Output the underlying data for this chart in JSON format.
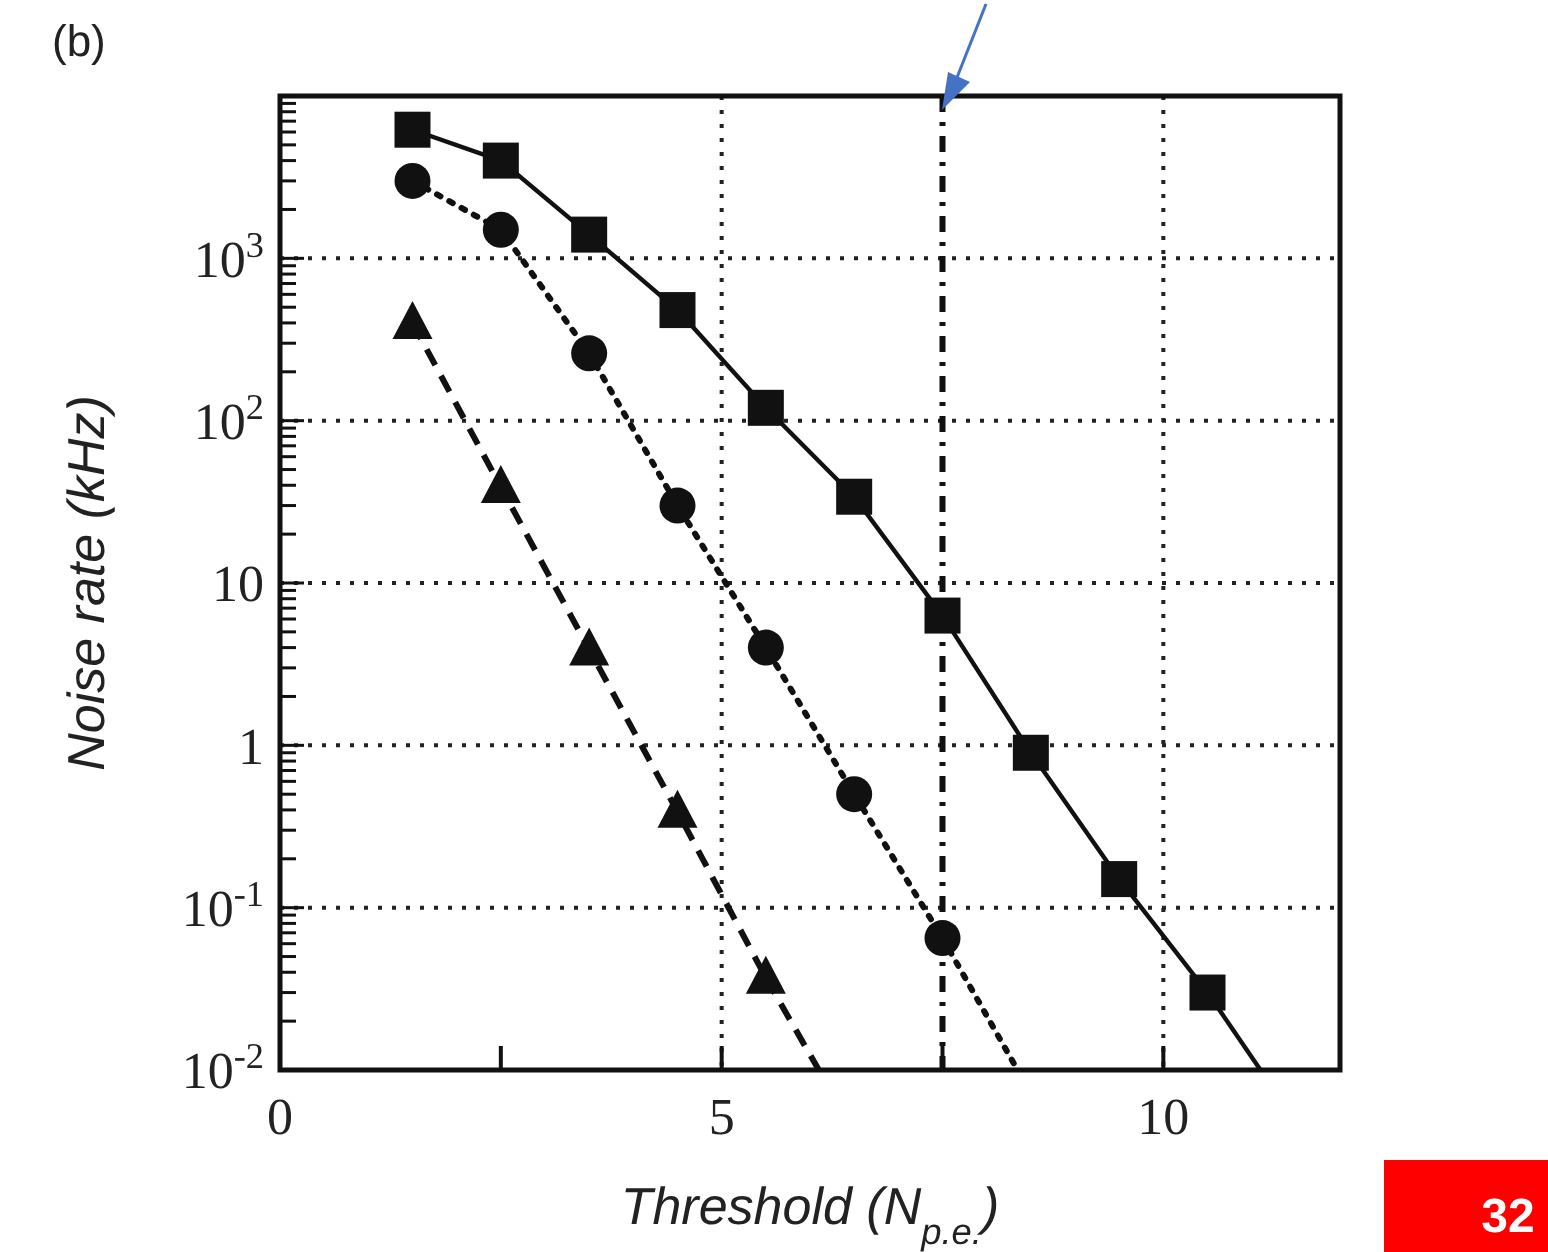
{
  "chart_data": {
    "type": "line",
    "xlabel": "Threshold (N$_{p.e.}$)",
    "ylabel": "Noise rate (kHz)",
    "log": "y",
    "grid": true,
    "xlim": [
      0,
      12
    ],
    "xticks": [
      0,
      {
        "value": 2.5,
        "label": null
      },
      5,
      {
        "value": 7.5,
        "label": null
      },
      10
    ],
    "ylim": [
      0.01,
      10000
    ],
    "yticks": [
      {
        "value": 0.01,
        "label": "10$^{-2}$"
      },
      {
        "value": 0.02,
        "label": null
      },
      {
        "value": 0.03,
        "label": null
      },
      {
        "value": 0.04,
        "label": null
      },
      {
        "value": 0.05,
        "label": null
      },
      {
        "value": 0.06,
        "label": null
      },
      {
        "value": 0.07,
        "label": null
      },
      {
        "value": 0.08,
        "label": null
      },
      {
        "value": 0.09,
        "label": null
      },
      {
        "value": 0.1,
        "label": "10$^{-1}$"
      },
      {
        "value": 0.2,
        "label": null
      },
      {
        "value": 0.3,
        "label": null
      },
      {
        "value": 0.4,
        "label": null
      },
      {
        "value": 0.5,
        "label": null
      },
      {
        "value": 0.6,
        "label": null
      },
      {
        "value": 0.7,
        "label": null
      },
      {
        "value": 0.8,
        "label": null
      },
      {
        "value": 0.9,
        "label": null
      },
      {
        "value": 1,
        "label": "1"
      },
      {
        "value": 2,
        "label": null
      },
      {
        "value": 3,
        "label": null
      },
      {
        "value": 4,
        "label": null
      },
      {
        "value": 5,
        "label": null
      },
      {
        "value": 6,
        "label": null
      },
      {
        "value": 7,
        "label": null
      },
      {
        "value": 8,
        "label": null
      },
      {
        "value": 9,
        "label": null
      },
      {
        "value": 10,
        "label": "10"
      },
      {
        "value": 20,
        "label": null
      },
      {
        "value": 30,
        "label": null
      },
      {
        "value": 40,
        "label": null
      },
      {
        "value": 50,
        "label": null
      },
      {
        "value": 60,
        "label": null
      },
      {
        "value": 70,
        "label": null
      },
      {
        "value": 80,
        "label": null
      },
      {
        "value": 90,
        "label": null
      },
      {
        "value": 100,
        "label": "10$^{2}$"
      },
      {
        "value": 200,
        "label": null
      },
      {
        "value": 300,
        "label": null
      },
      {
        "value": 400,
        "label": null
      },
      {
        "value": 500,
        "label": null
      },
      {
        "value": 600,
        "label": null
      },
      {
        "value": 700,
        "label": null
      },
      {
        "value": 800,
        "label": null
      },
      {
        "value": 900,
        "label": null
      },
      {
        "value": 1000,
        "label": "10$^{3}$"
      },
      {
        "value": 2000,
        "label": null
      },
      {
        "value": 3000,
        "label": null
      },
      {
        "value": 4000,
        "label": null
      },
      {
        "value": 5000,
        "label": null
      },
      {
        "value": 6000,
        "label": null
      },
      {
        "value": 7000,
        "label": null
      },
      {
        "value": 8000,
        "label": null
      },
      {
        "value": 9000,
        "label": null
      },
      {
        "value": 10000,
        "label": null
      }
    ],
    "series": [
      {
        "color": "#111111",
        "marker": "square",
        "line_style": "solid",
        "x": [
          1.5,
          2.5,
          3.5,
          4.5,
          5.5,
          6.5,
          7.5,
          8.5,
          9.5,
          10.5
        ],
        "values": [
          6200,
          4000,
          1400,
          480,
          120,
          34,
          6.3,
          0.9,
          0.15,
          0.03
        ]
      },
      {
        "color": "#111111",
        "marker": "circle",
        "line_style": "dotted",
        "x": [
          1.5,
          2.5,
          3.5,
          4.5,
          5.5,
          6.5,
          7.5
        ],
        "values": [
          3000,
          1500,
          260,
          30,
          4,
          0.5,
          0.065
        ]
      },
      {
        "color": "#111111",
        "marker": "triangle",
        "line_style": "dashed",
        "x": [
          1.5,
          2.5,
          3.5,
          4.5,
          5.5
        ],
        "values": [
          400,
          39,
          3.9,
          0.39,
          0.037
        ]
      },
      {
        "color": "#111111",
        "marker": "none",
        "line_style": "solid",
        "x": [
          10.5,
          11.1
        ],
        "values": [
          0.03,
          0.01
        ]
      },
      {
        "color": "#111111",
        "marker": "none",
        "line_style": "dotted",
        "x": [
          7.5,
          8.35
        ],
        "values": [
          0.065,
          0.01
        ]
      },
      {
        "color": "#111111",
        "marker": "none",
        "line_style": "dashed",
        "x": [
          5.5,
          6.1
        ],
        "values": [
          0.037,
          0.01
        ]
      }
    ],
    "ref_lines": [
      {
        "axis": "x",
        "value": 7.5,
        "color": "#111111",
        "line_style": "dashed"
      }
    ],
    "annotations": [
      "(b)",
      "32"
    ]
  }
}
